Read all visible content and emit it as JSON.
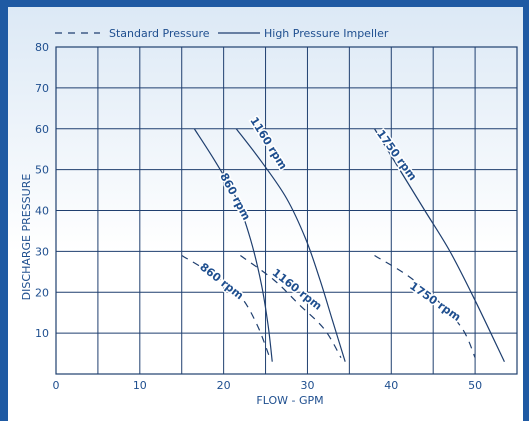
{
  "chart_data": {
    "type": "line",
    "xlabel": "FLOW - GPM",
    "ylabel": "DISCHARGE PRESSURE",
    "xlim": [
      0,
      55
    ],
    "ylim": [
      0,
      80
    ],
    "x_ticks": [
      0,
      10,
      20,
      30,
      40,
      50
    ],
    "y_ticks": [
      10,
      20,
      30,
      40,
      50,
      60,
      70,
      80
    ],
    "grid": true,
    "legend_position": "top",
    "legend": [
      {
        "label": "Standard Pressure",
        "style": "dashed"
      },
      {
        "label": "High Pressure Impeller",
        "style": "solid"
      }
    ],
    "line_color": "#1f3f6f",
    "series": [
      {
        "name": "860 rpm",
        "style": "solid",
        "points": [
          [
            16.5,
            60
          ],
          [
            19,
            52
          ],
          [
            21.5,
            43
          ],
          [
            23.2,
            33
          ],
          [
            24.5,
            22
          ],
          [
            25.3,
            12
          ],
          [
            25.8,
            3
          ]
        ]
      },
      {
        "name": "1160 rpm",
        "style": "solid",
        "points": [
          [
            21.5,
            60
          ],
          [
            24.5,
            52
          ],
          [
            27.5,
            43
          ],
          [
            29.8,
            33
          ],
          [
            31.5,
            23
          ],
          [
            33,
            13
          ],
          [
            34.5,
            3
          ]
        ]
      },
      {
        "name": "1750 rpm",
        "style": "solid",
        "points": [
          [
            38,
            60
          ],
          [
            41,
            50
          ],
          [
            44,
            40
          ],
          [
            47,
            30
          ],
          [
            50,
            18
          ],
          [
            53.5,
            3
          ]
        ]
      },
      {
        "name": "860 rpm",
        "style": "dashed",
        "points": [
          [
            15,
            29
          ],
          [
            19,
            24
          ],
          [
            22,
            19
          ],
          [
            24,
            12
          ],
          [
            25.5,
            4
          ]
        ]
      },
      {
        "name": "1160 rpm",
        "style": "dashed",
        "points": [
          [
            22,
            29
          ],
          [
            26,
            23
          ],
          [
            29,
            17
          ],
          [
            32,
            11
          ],
          [
            34,
            4
          ]
        ]
      },
      {
        "name": "1750 rpm",
        "style": "dashed",
        "points": [
          [
            38,
            29
          ],
          [
            42,
            24
          ],
          [
            45.5,
            18
          ],
          [
            48.5,
            11
          ],
          [
            50,
            4
          ]
        ]
      }
    ],
    "curve_labels": [
      "860 rpm",
      "1160 rpm",
      "1750 rpm",
      "860 rpm",
      "1160 rpm",
      "1750 rpm"
    ]
  }
}
